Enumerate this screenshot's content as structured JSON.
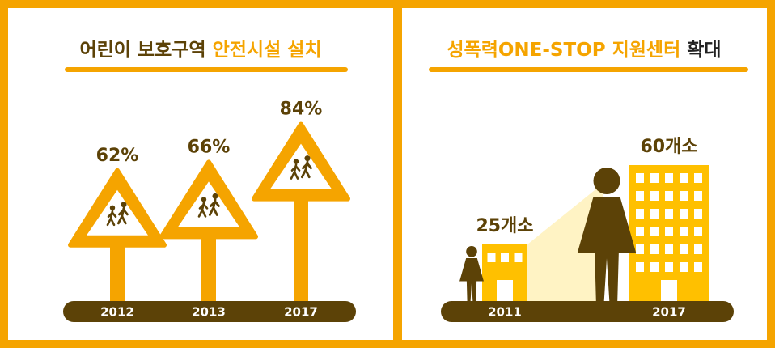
{
  "chart_data": [
    {
      "type": "sign",
      "title": [
        "어린이 보호구역",
        "안전시설 설치"
      ],
      "categories": [
        "2012",
        "2013",
        "2017"
      ],
      "values": [
        62,
        66,
        84
      ],
      "value_labels": [
        "62%",
        "66%",
        "84%"
      ],
      "color": "#f5a400"
    },
    {
      "type": "building",
      "title": [
        "성폭력ONE-STOP 지원센터",
        "확대"
      ],
      "categories": [
        "2011",
        "2017"
      ],
      "values": [
        25,
        60
      ],
      "value_labels": [
        "25개소",
        "60개소"
      ],
      "color": "#ffc000"
    }
  ]
}
